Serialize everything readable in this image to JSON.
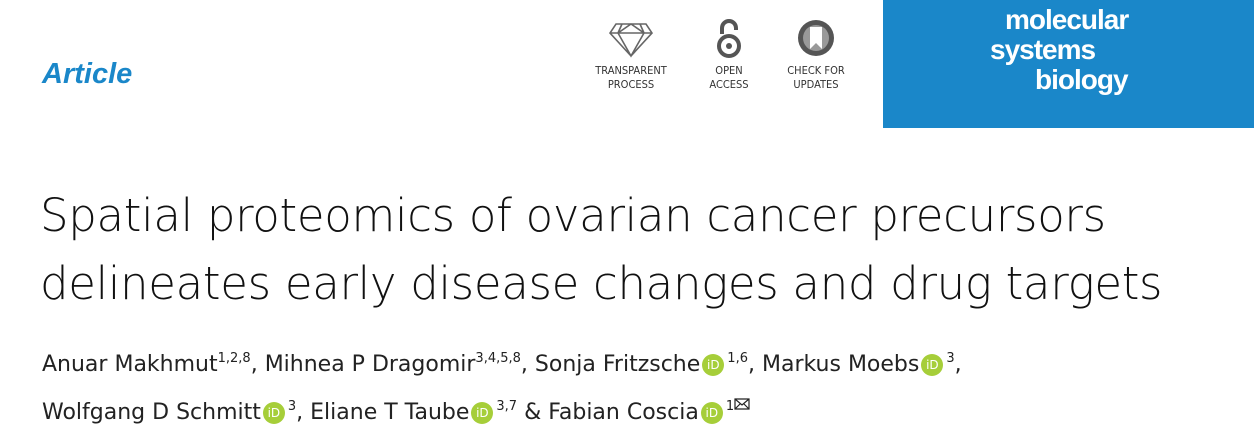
{
  "header": {
    "article_type": "Article",
    "badges": [
      {
        "line1": "TRANSPARENT",
        "line2": "PROCESS"
      },
      {
        "line1": "OPEN",
        "line2": "ACCESS"
      },
      {
        "line1": "CHECK FOR",
        "line2": "UPDATES"
      }
    ],
    "journal": [
      "molecular",
      "systems",
      "biology"
    ]
  },
  "title": [
    "Spatial proteomics of ovarian cancer precursors",
    "delineates early disease changes and drug targets"
  ],
  "orcid_label": "iD",
  "author_lines": [
    [
      {
        "name": "Anuar Makhmut",
        "affiliations": "1,2,8",
        "orcid": false,
        "separator": ","
      },
      {
        "name": "Mihnea P Dragomir",
        "affiliations": "3,4,5,8",
        "orcid": false,
        "separator": ","
      },
      {
        "name": "Sonja Fritzsche",
        "affiliations": "1,6",
        "orcid": true,
        "separator": ","
      },
      {
        "name": "Markus Moebs",
        "affiliations": "3",
        "orcid": true,
        "separator": ","
      }
    ],
    [
      {
        "name": "Wolfgang D Schmitt",
        "affiliations": "3",
        "orcid": true,
        "separator": ","
      },
      {
        "name": "Eliane T Taube",
        "affiliations": "3,7",
        "orcid": true,
        "separator": "&"
      },
      {
        "name": "Fabian Coscia",
        "affiliations": "1",
        "orcid": true,
        "corresponding": true
      }
    ]
  ]
}
